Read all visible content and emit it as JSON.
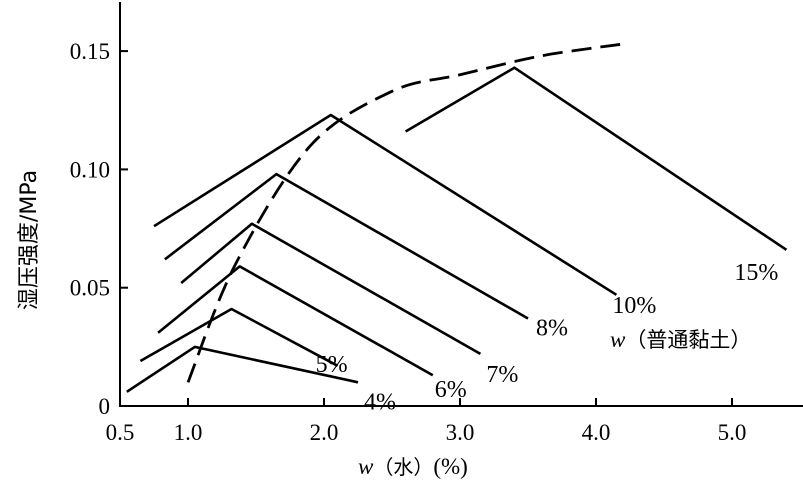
{
  "chart_data": {
    "type": "line",
    "title": "",
    "xlabel_var": "w",
    "xlabel_sub": "（水）",
    "xlabel_unit": "(%)",
    "ylabel": "湿压强度/MPa",
    "xlim": [
      0.5,
      5.5
    ],
    "ylim": [
      0,
      0.17
    ],
    "x_ticks": [
      0.5,
      1.0,
      2.0,
      3.0,
      4.0,
      5.0
    ],
    "x_tick_labels": [
      "0.5",
      "1.0",
      "2.0",
      "3.0",
      "4.0",
      "5.0"
    ],
    "y_ticks": [
      0,
      0.05,
      0.1,
      0.15
    ],
    "y_tick_labels": [
      "0",
      "0.05",
      "0.10",
      "0.15"
    ],
    "legend_var": "w",
    "legend_text": "（普通黏土）",
    "series": [
      {
        "name": "4%",
        "x": [
          0.55,
          1.05,
          2.25
        ],
        "y": [
          0.006,
          0.025,
          0.01
        ]
      },
      {
        "name": "5%",
        "x": [
          0.65,
          1.32,
          2.1
        ],
        "y": [
          0.019,
          0.041,
          0.017
        ]
      },
      {
        "name": "6%",
        "x": [
          0.78,
          1.38,
          2.8
        ],
        "y": [
          0.031,
          0.059,
          0.013
        ]
      },
      {
        "name": "7%",
        "x": [
          0.95,
          1.47,
          3.15
        ],
        "y": [
          0.052,
          0.077,
          0.022
        ]
      },
      {
        "name": "8%",
        "x": [
          0.83,
          1.65,
          3.5
        ],
        "y": [
          0.062,
          0.098,
          0.037
        ]
      },
      {
        "name": "10%",
        "x": [
          0.75,
          2.05,
          4.15
        ],
        "y": [
          0.076,
          0.123,
          0.047
        ]
      },
      {
        "name": "15%",
        "x": [
          2.6,
          3.4,
          5.4
        ],
        "y": [
          0.116,
          0.143,
          0.066
        ]
      }
    ],
    "envelope": {
      "x": [
        1.0,
        1.35,
        1.9,
        2.5,
        3.0,
        3.6,
        4.2
      ],
      "y": [
        0.01,
        0.06,
        0.11,
        0.133,
        0.14,
        0.148,
        0.153
      ]
    }
  }
}
